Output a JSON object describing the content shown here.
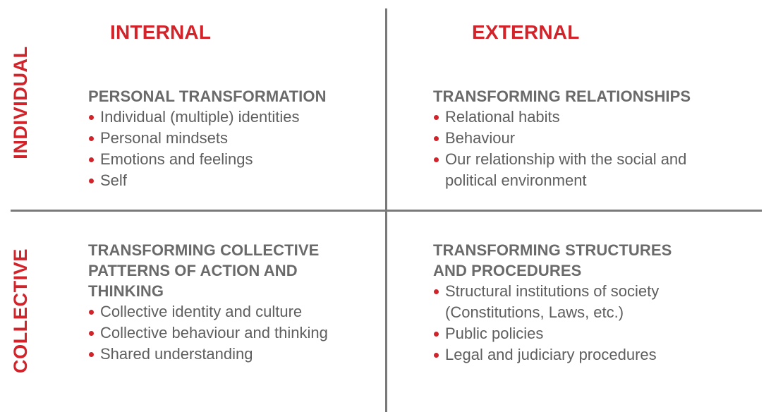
{
  "columns": {
    "left": "INTERNAL",
    "right": "EXTERNAL"
  },
  "rows": {
    "top": "INDIVIDUAL",
    "bottom": "COLLECTIVE"
  },
  "quadrants": {
    "top_left": {
      "title": "PERSONAL TRANSFORMATION",
      "items": [
        "Individual (multiple) identities",
        "Personal mindsets",
        "Emotions and feelings",
        "Self"
      ]
    },
    "top_right": {
      "title": "TRANSFORMING RELATIONSHIPS",
      "items": [
        "Relational habits",
        "Behaviour",
        "Our relationship with the social and political environment"
      ]
    },
    "bottom_left": {
      "title": "TRANSFORMING COLLECTIVE PATTERNS OF ACTION AND THINKING",
      "items": [
        "Collective identity and culture",
        "Collective behaviour and thinking",
        "Shared understanding"
      ]
    },
    "bottom_right": {
      "title": "TRANSFORMING STRUCTURES AND PROCEDURES",
      "items": [
        "Structural institutions of society (Constitutions, Laws, etc.)",
        "Public policies",
        "Legal and judiciary procedures"
      ]
    }
  },
  "colors": {
    "accent": "#d2232a",
    "text": "#5e5e5e",
    "divider": "#7a7a7a"
  }
}
